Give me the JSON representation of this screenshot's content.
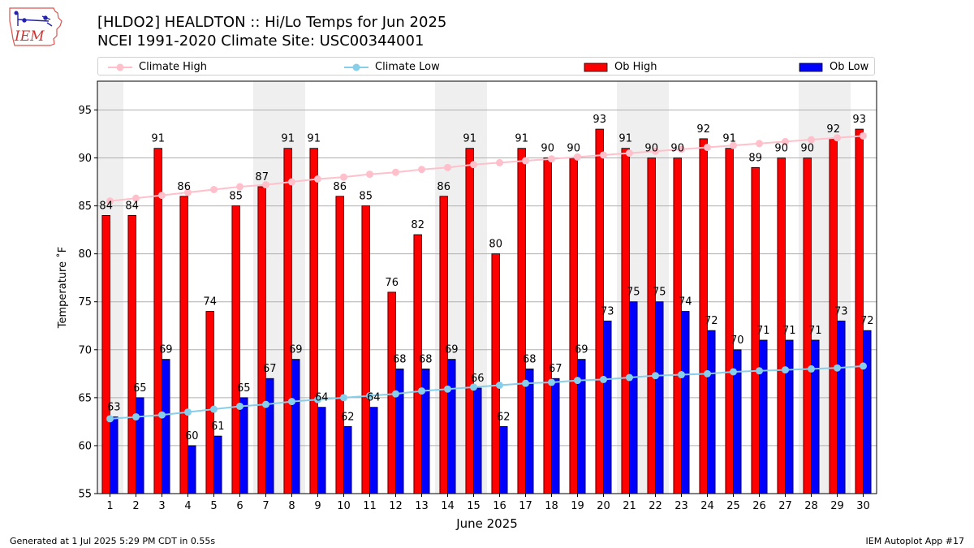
{
  "header": {
    "title_line1": "[HLDO2] HEALDTON :: Hi/Lo Temps for Jun 2025",
    "title_line2": "NCEI 1991-2020 Climate Site: USC00344001"
  },
  "logo": {
    "text": "IEM",
    "icon": "iem-iowa-logo"
  },
  "footer": {
    "generated": "Generated at 1 Jul 2025 5:29 PM CDT in 0.55s",
    "app": "IEM Autoplot App #17"
  },
  "chart_data": {
    "type": "bar",
    "xlabel": "June 2025",
    "ylabel": "Temperature ˚F",
    "ylim": [
      55,
      98
    ],
    "yticks": [
      55,
      60,
      65,
      70,
      75,
      80,
      85,
      90,
      95
    ],
    "grid": true,
    "legend_placement": "top",
    "weekend_shading_days": [
      1,
      7,
      8,
      14,
      15,
      21,
      22,
      28,
      29
    ],
    "categories": [
      "1",
      "2",
      "3",
      "4",
      "5",
      "6",
      "7",
      "8",
      "9",
      "10",
      "11",
      "12",
      "13",
      "14",
      "15",
      "16",
      "17",
      "18",
      "19",
      "20",
      "21",
      "22",
      "23",
      "24",
      "25",
      "26",
      "27",
      "28",
      "29",
      "30"
    ],
    "series": [
      {
        "name": "Ob High",
        "type": "bar",
        "color": "#ff0000",
        "values": [
          84,
          84,
          91,
          86,
          74,
          85,
          87,
          91,
          91,
          86,
          85,
          76,
          82,
          86,
          91,
          80,
          91,
          90,
          90,
          93,
          91,
          90,
          90,
          92,
          91,
          89,
          90,
          90,
          92,
          93
        ]
      },
      {
        "name": "Ob Low",
        "type": "bar",
        "color": "#0000ff",
        "values": [
          63,
          65,
          69,
          60,
          61,
          65,
          67,
          69,
          64,
          62,
          64,
          68,
          68,
          69,
          66,
          62,
          68,
          67,
          69,
          73,
          75,
          75,
          74,
          72,
          70,
          71,
          71,
          71,
          73,
          72
        ]
      },
      {
        "name": "Climate High",
        "type": "line",
        "color": "#ffc0cb",
        "values": [
          85.5,
          85.8,
          86.1,
          86.4,
          86.7,
          87.0,
          87.2,
          87.5,
          87.8,
          88.0,
          88.3,
          88.5,
          88.8,
          89.0,
          89.3,
          89.5,
          89.7,
          89.9,
          90.1,
          90.3,
          90.5,
          90.7,
          90.9,
          91.1,
          91.3,
          91.5,
          91.7,
          91.9,
          92.1,
          92.3
        ]
      },
      {
        "name": "Climate Low",
        "type": "line",
        "color": "#87ceeb",
        "values": [
          62.8,
          63.0,
          63.2,
          63.5,
          63.8,
          64.1,
          64.3,
          64.6,
          64.8,
          65.0,
          65.2,
          65.4,
          65.7,
          65.9,
          66.1,
          66.3,
          66.5,
          66.6,
          66.8,
          66.9,
          67.1,
          67.3,
          67.4,
          67.5,
          67.7,
          67.8,
          67.9,
          68.0,
          68.1,
          68.3
        ]
      }
    ]
  }
}
